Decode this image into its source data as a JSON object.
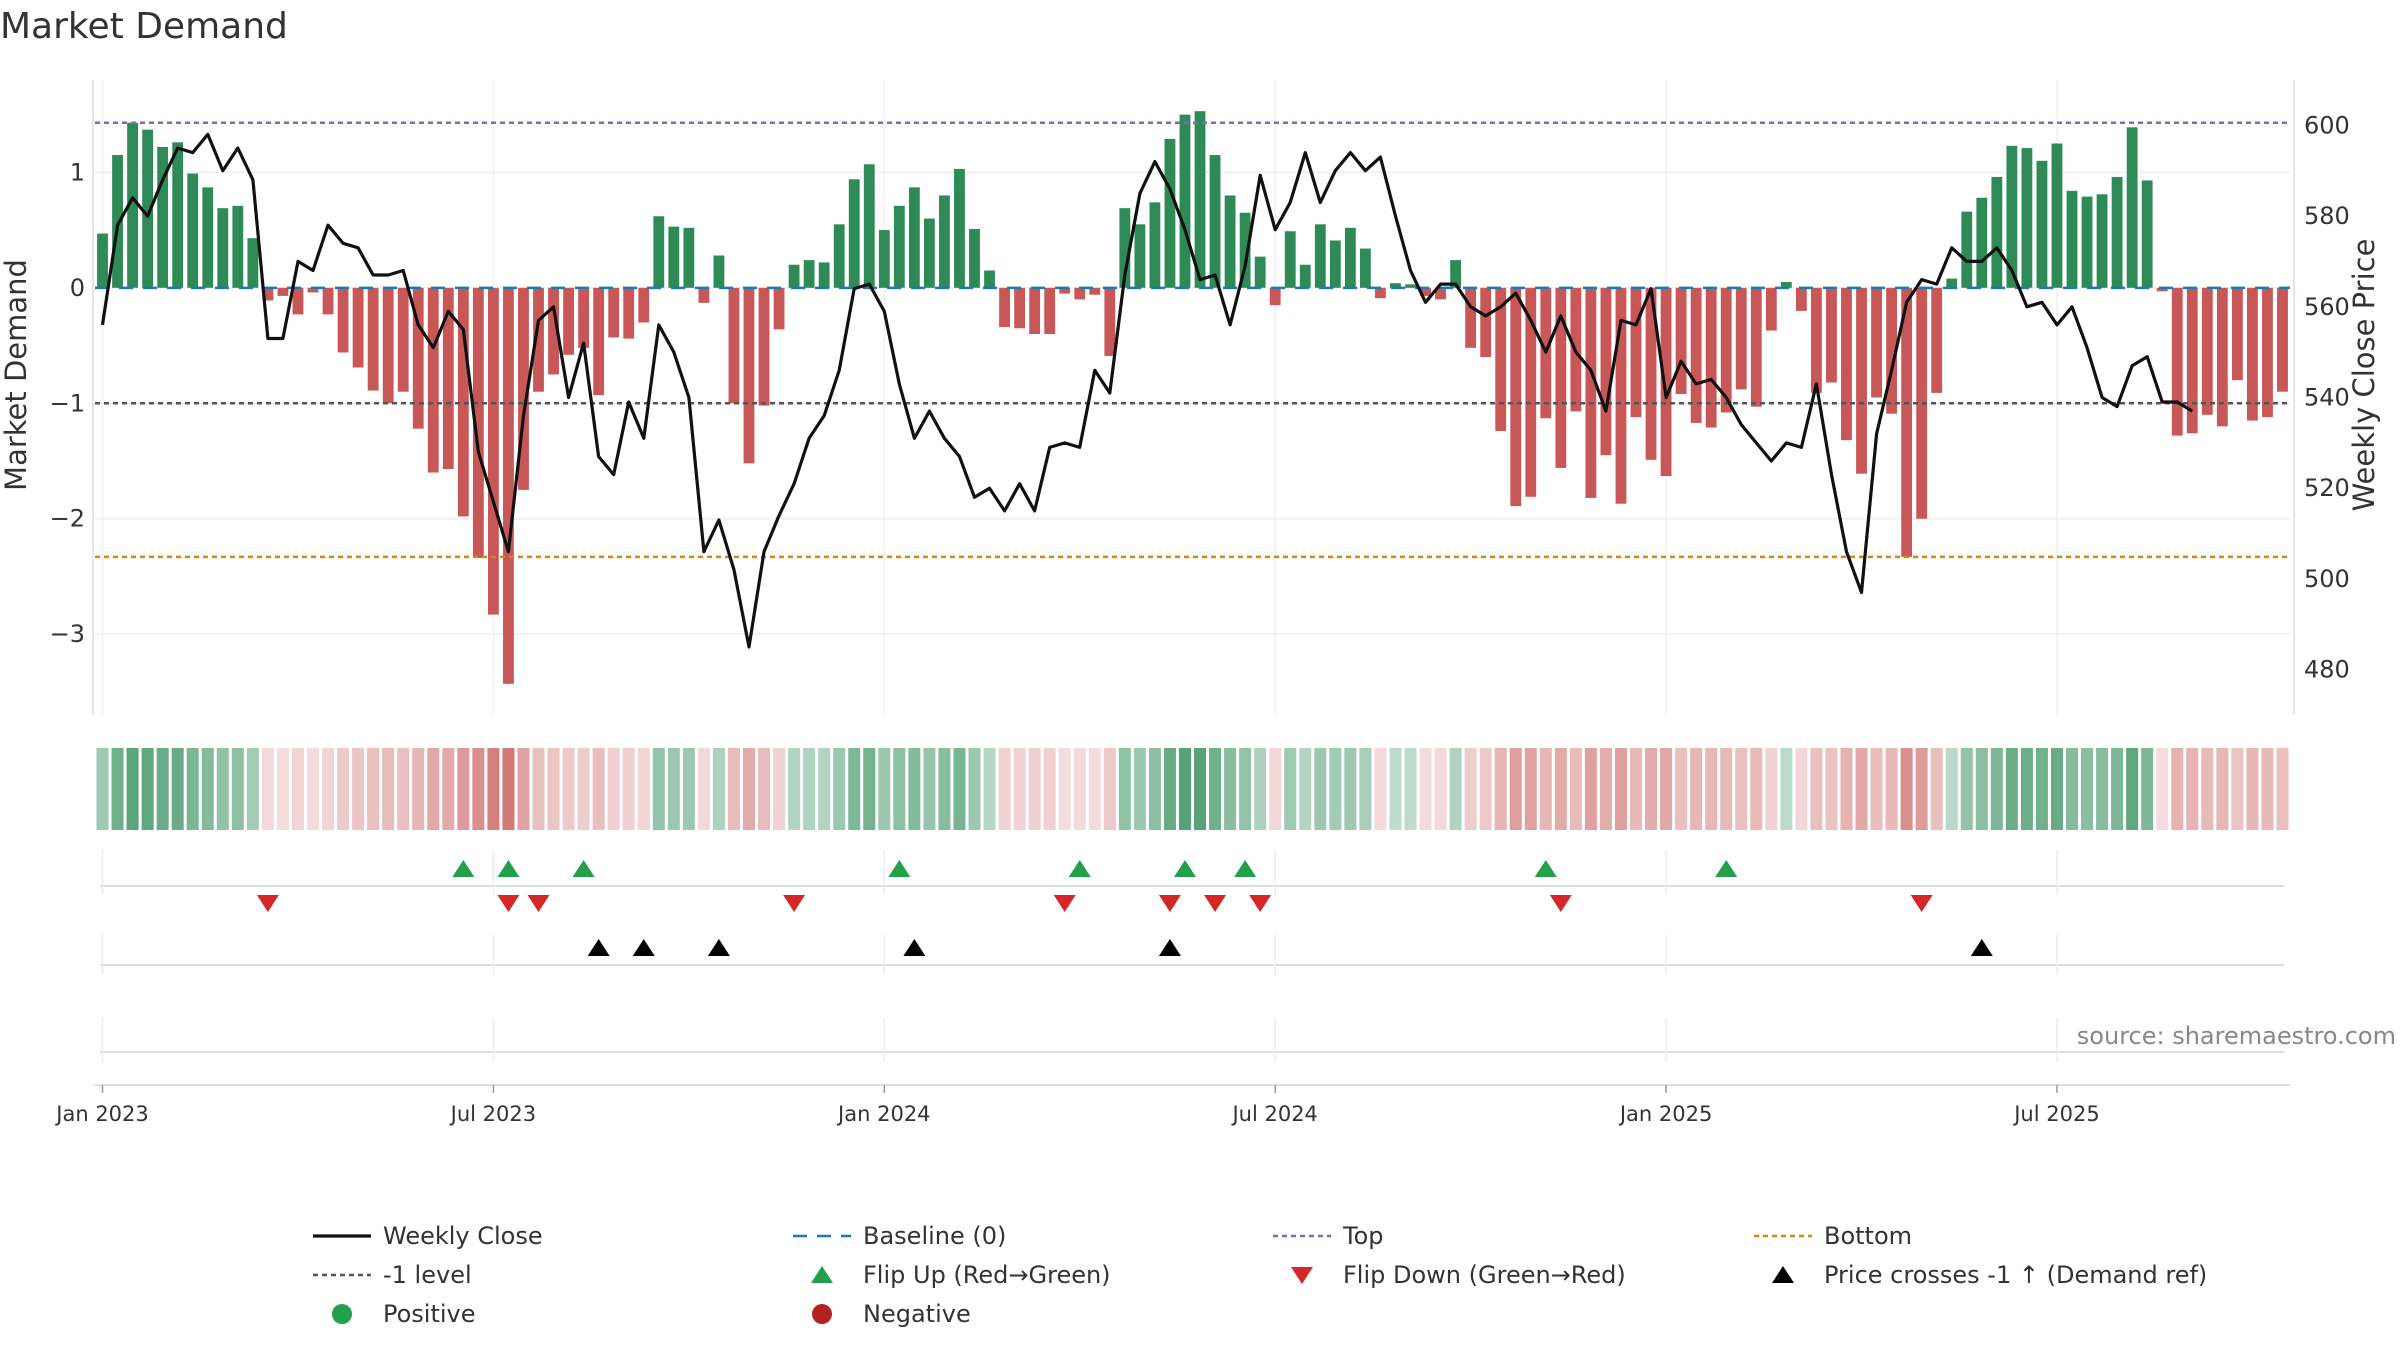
{
  "chart_data": {
    "type": "bar",
    "title": "Market Demand",
    "ylabel": "Market Demand",
    "y2label": "Weekly Close Price",
    "ylim": [
      -3.7,
      1.8
    ],
    "y2lim": [
      470,
      610
    ],
    "yticks": [
      1,
      0,
      -1,
      -2,
      -3
    ],
    "ytick_labels": [
      "1",
      "0",
      "−1",
      "−2",
      "−3"
    ],
    "y2ticks": [
      600,
      580,
      560,
      540,
      520,
      500,
      480
    ],
    "x_ticks": [
      {
        "week": 1,
        "label": "Jan 2023"
      },
      {
        "week": 27,
        "label": "Jul 2023"
      },
      {
        "week": 53,
        "label": "Jan 2024"
      },
      {
        "week": 79,
        "label": "Jul 2024"
      },
      {
        "week": 105,
        "label": "Jan 2025"
      },
      {
        "week": 131,
        "label": "Jul 2025"
      }
    ],
    "reference_lines": {
      "top": 1.43,
      "bottom": -2.33,
      "minus_one": -1,
      "baseline": 0
    },
    "demand": [
      0.47,
      1.15,
      1.43,
      1.37,
      1.22,
      1.26,
      0.99,
      0.87,
      0.69,
      0.71,
      0.43,
      -0.11,
      -0.07,
      -0.23,
      -0.04,
      -0.23,
      -0.56,
      -0.69,
      -0.89,
      -1.0,
      -0.9,
      -1.22,
      -1.6,
      -1.57,
      -1.98,
      -2.34,
      -2.83,
      -3.43,
      -1.75,
      -0.9,
      -0.75,
      -0.58,
      -0.52,
      -0.93,
      -0.43,
      -0.44,
      -0.3,
      0.62,
      0.53,
      0.52,
      -0.13,
      0.28,
      -1.0,
      -1.52,
      -1.02,
      -0.36,
      0.2,
      0.24,
      0.22,
      0.55,
      0.94,
      1.07,
      0.5,
      0.71,
      0.87,
      0.6,
      0.8,
      1.03,
      0.51,
      0.15,
      -0.34,
      -0.35,
      -0.4,
      -0.4,
      -0.05,
      -0.1,
      -0.06,
      -0.59,
      0.69,
      0.55,
      0.74,
      1.29,
      1.5,
      1.53,
      1.15,
      0.8,
      0.65,
      0.27,
      -0.15,
      0.49,
      0.2,
      0.55,
      0.41,
      0.52,
      0.34,
      -0.09,
      0.04,
      0.03,
      -0.07,
      -0.1,
      0.24,
      -0.52,
      -0.6,
      -1.24,
      -1.89,
      -1.81,
      -1.13,
      -1.56,
      -1.07,
      -1.82,
      -1.45,
      -1.87,
      -1.12,
      -1.49,
      -1.63,
      -0.92,
      -1.17,
      -1.21,
      -1.08,
      -0.88,
      -1.03,
      -0.37,
      0.05,
      -0.2,
      -0.91,
      -0.82,
      -1.32,
      -1.61,
      -0.95,
      -1.09,
      -2.33,
      -2.0,
      -0.91,
      0.08,
      0.66,
      0.78,
      0.96,
      1.23,
      1.21,
      1.1,
      1.25,
      0.84,
      0.79,
      0.81,
      0.96,
      1.39,
      0.93,
      -0.03,
      -1.28,
      -1.26,
      -1.1,
      -1.2,
      -0.8,
      -1.15,
      -1.12,
      -0.9
    ],
    "weekly_close": [
      556,
      578,
      584,
      580,
      588,
      595,
      594,
      598,
      590,
      595,
      588,
      553,
      553,
      570,
      568,
      578,
      574,
      573,
      567,
      567,
      568,
      556,
      551,
      559,
      555,
      528,
      517,
      506,
      536,
      557,
      560,
      540,
      552,
      527,
      523,
      539,
      531,
      556,
      550,
      540,
      506,
      513,
      502,
      485,
      506,
      514,
      521,
      531,
      536,
      546,
      564,
      565,
      559,
      543,
      531,
      537,
      531,
      527,
      518,
      520,
      515,
      521,
      515,
      529,
      530,
      529,
      546,
      541,
      567,
      585,
      592,
      586,
      577,
      566,
      567,
      556,
      569,
      589,
      577,
      583,
      594,
      583,
      590,
      594,
      590,
      593,
      580,
      568,
      561,
      565,
      565,
      560,
      558,
      560,
      563,
      557,
      550,
      558,
      550,
      546,
      537,
      557,
      556,
      564,
      540,
      548,
      543,
      544,
      540,
      534,
      530,
      526,
      530,
      529,
      543,
      523,
      506,
      497,
      532,
      546,
      561,
      566,
      565,
      573,
      570,
      570,
      573,
      568,
      560,
      561,
      556,
      560,
      551,
      540,
      538,
      547,
      549,
      539,
      539,
      537
    ],
    "price_line_color": "#111111",
    "positive_bar_color": "#2e8b57",
    "negative_bar_color": "#c85858",
    "flip_up_weeks": [
      25,
      28,
      33,
      54,
      66,
      73,
      77,
      97,
      109
    ],
    "flip_down_weeks": [
      12,
      28,
      30,
      47,
      65,
      72,
      75,
      78,
      98,
      122
    ],
    "price_cross_weeks": [
      34,
      37,
      42,
      55,
      72,
      126
    ],
    "source": "source: sharemaestro.com",
    "legend": [
      {
        "label": "Weekly Close",
        "symbol": "line",
        "color": "#111111"
      },
      {
        "label": "Baseline (0)",
        "symbol": "dash",
        "color": "#1f77b4"
      },
      {
        "label": "Top",
        "symbol": "dot",
        "color": "#7b68c8"
      },
      {
        "label": "Bottom",
        "symbol": "dot",
        "color": "#d4880f"
      },
      {
        "label": "-1 level",
        "symbol": "dot",
        "color": "#555555"
      },
      {
        "label": "Flip Up (Red→Green)",
        "symbol": "tri-up",
        "color": "#22a04a"
      },
      {
        "label": "Flip Down (Green→Red)",
        "symbol": "tri-down",
        "color": "#d62728"
      },
      {
        "label": "Price crosses -1 ↑ (Demand ref)",
        "symbol": "tri-up",
        "color": "#000000"
      },
      {
        "label": "Positive",
        "symbol": "circle",
        "color": "#22a04a"
      },
      {
        "label": "Negative",
        "symbol": "circle",
        "color": "#b22222"
      }
    ]
  }
}
